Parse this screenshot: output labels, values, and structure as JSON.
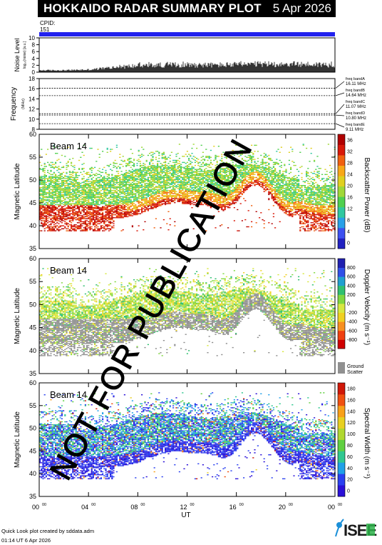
{
  "header": {
    "title": "HOKKAIDO RADAR SUMMARY PLOT",
    "date": "5 Apr 2026"
  },
  "cpid": {
    "label": "CPID:",
    "value": "151"
  },
  "noise_panel": {
    "ylabel": "Noise Level",
    "ylabel_sub": "log₁₀(noise) [a.u.]",
    "ticks": [
      "0",
      "2",
      "4",
      "6",
      "8",
      "10"
    ]
  },
  "freq_panel": {
    "ylabel": "Frequency",
    "ylabel_unit": "(MHz)",
    "ticks": [
      "8",
      "10",
      "12",
      "14",
      "16",
      "18"
    ],
    "bands": [
      {
        "label": "freq bandA",
        "value": "16.11 MHz",
        "mhz": 16.11
      },
      {
        "label": "freq bandB",
        "value": "14.64 MHz",
        "mhz": 14.64
      },
      {
        "label": "freq bandC",
        "value": "11.07 MHz",
        "mhz": 11.07
      },
      {
        "label": "freq bandD",
        "value": "10.80 MHz",
        "mhz": 10.8
      },
      {
        "label": "freq bandE",
        "value": "9.11 MHz",
        "mhz": 9.11
      }
    ]
  },
  "panels": [
    {
      "id": "power",
      "beam": "Beam 14",
      "ylabel": "Magnetic Latitude",
      "cbar_label": "Backscatter Power (dB)",
      "cbar_ticks": [
        "0",
        "4",
        "8",
        "12",
        "16",
        "20",
        "24",
        "28",
        "32",
        "36"
      ],
      "cbar_colors": [
        "#2020c0",
        "#3c50f0",
        "#28a0e8",
        "#30c8a0",
        "#50d050",
        "#a0d838",
        "#e0d020",
        "#f8a818",
        "#f06010",
        "#d81808",
        "#b00000"
      ]
    },
    {
      "id": "velocity",
      "beam": "Beam 14",
      "ylabel": "Magnetic Latitude",
      "cbar_label": "Doppler Velocity (m s⁻¹)",
      "cbar_ticks": [
        "-800",
        "-600",
        "-400",
        "-200",
        "0",
        "200",
        "400",
        "600",
        "800"
      ],
      "cbar_colors": [
        "#d00000",
        "#f04010",
        "#f89020",
        "#f0d020",
        "#d8e840",
        "#80d840",
        "#30c070",
        "#20a0d0",
        "#3050e8",
        "#2020b0"
      ],
      "ground_scatter_label": [
        "Ground",
        "Scatter"
      ],
      "ground_scatter_color": "#909090"
    },
    {
      "id": "width",
      "beam": "Beam 14",
      "ylabel": "Magnetic Latitude",
      "cbar_label": "Spectral Width (m s⁻¹)",
      "cbar_ticks": [
        "0",
        "20",
        "40",
        "60",
        "80",
        "100",
        "120",
        "140",
        "160",
        "180"
      ],
      "cbar_colors": [
        "#2a10d8",
        "#2a40f0",
        "#20a0e8",
        "#30c890",
        "#60d040",
        "#b0d830",
        "#e8d020",
        "#f8a018",
        "#f05010",
        "#d01808"
      ]
    }
  ],
  "lat_ticks": [
    "35",
    "40",
    "45",
    "50",
    "55",
    "60"
  ],
  "time_axis": {
    "ticks": [
      {
        "h": "00",
        "m": "00"
      },
      {
        "h": "04",
        "m": "00"
      },
      {
        "h": "08",
        "m": "00"
      },
      {
        "h": "12",
        "m": "00"
      },
      {
        "h": "16",
        "m": "00"
      },
      {
        "h": "20",
        "m": "00"
      },
      {
        "h": "00",
        "m": "00"
      }
    ],
    "label": "UT"
  },
  "watermark": "NOT FOR PUBLICATION",
  "footer": {
    "line1": "Quick Look plot created by sddata.adm",
    "line2": "01:14 UT 6 Apr 2026"
  },
  "logo_text": "ISEE",
  "chart_data": [
    {
      "type": "line",
      "title": "Noise Level",
      "ylabel": "Noise Level",
      "ylim": [
        0,
        10
      ],
      "x_range_ut_hours": [
        0,
        24
      ],
      "series": [
        {
          "x": [
            0,
            2,
            4,
            6,
            8,
            10,
            12,
            14,
            16,
            18,
            20,
            22,
            24
          ],
          "values": [
            0.6,
            0.6,
            0.8,
            1.5,
            2.1,
            2.3,
            2.4,
            2.3,
            2.4,
            2.6,
            2.6,
            2.5,
            2.4
          ]
        }
      ]
    },
    {
      "type": "line",
      "title": "Frequency",
      "ylabel": "Frequency (MHz)",
      "ylim": [
        8,
        18
      ],
      "x_range_ut_hours": [
        0,
        24
      ],
      "series": [
        {
          "name": "freq bandA",
          "values": [
            16.11
          ]
        },
        {
          "name": "freq bandB",
          "values": [
            14.64
          ]
        },
        {
          "name": "freq bandC",
          "values": [
            11.07
          ]
        },
        {
          "name": "freq bandD",
          "values": [
            10.8
          ]
        },
        {
          "name": "freq bandE",
          "values": [
            9.11
          ]
        }
      ]
    },
    {
      "type": "heatmap",
      "title": "Beam 14 Backscatter Power",
      "xlabel": "UT",
      "ylabel": "Magnetic Latitude",
      "x_range_ut_hours": [
        0,
        24
      ],
      "ylim": [
        35,
        60
      ],
      "colorbar": {
        "label": "Backscatter Power (dB)",
        "range": [
          0,
          36
        ]
      }
    },
    {
      "type": "heatmap",
      "title": "Beam 14 Doppler Velocity",
      "xlabel": "UT",
      "ylabel": "Magnetic Latitude",
      "x_range_ut_hours": [
        0,
        24
      ],
      "ylim": [
        35,
        60
      ],
      "colorbar": {
        "label": "Doppler Velocity (m s⁻¹)",
        "range": [
          -800,
          800
        ]
      }
    },
    {
      "type": "heatmap",
      "title": "Beam 14 Spectral Width",
      "xlabel": "UT",
      "ylabel": "Magnetic Latitude",
      "x_range_ut_hours": [
        0,
        24
      ],
      "ylim": [
        35,
        60
      ],
      "colorbar": {
        "label": "Spectral Width (m s⁻¹)",
        "range": [
          0,
          180
        ]
      }
    }
  ]
}
